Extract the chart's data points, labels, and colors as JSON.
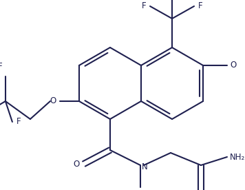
{
  "bg_color": "#ffffff",
  "line_color": "#1f2050",
  "lw": 1.5,
  "fs": 8.5,
  "figsize": [
    3.56,
    2.76
  ],
  "dpi": 100,
  "xlim": [
    0,
    356
  ],
  "ylim": [
    0,
    276
  ]
}
